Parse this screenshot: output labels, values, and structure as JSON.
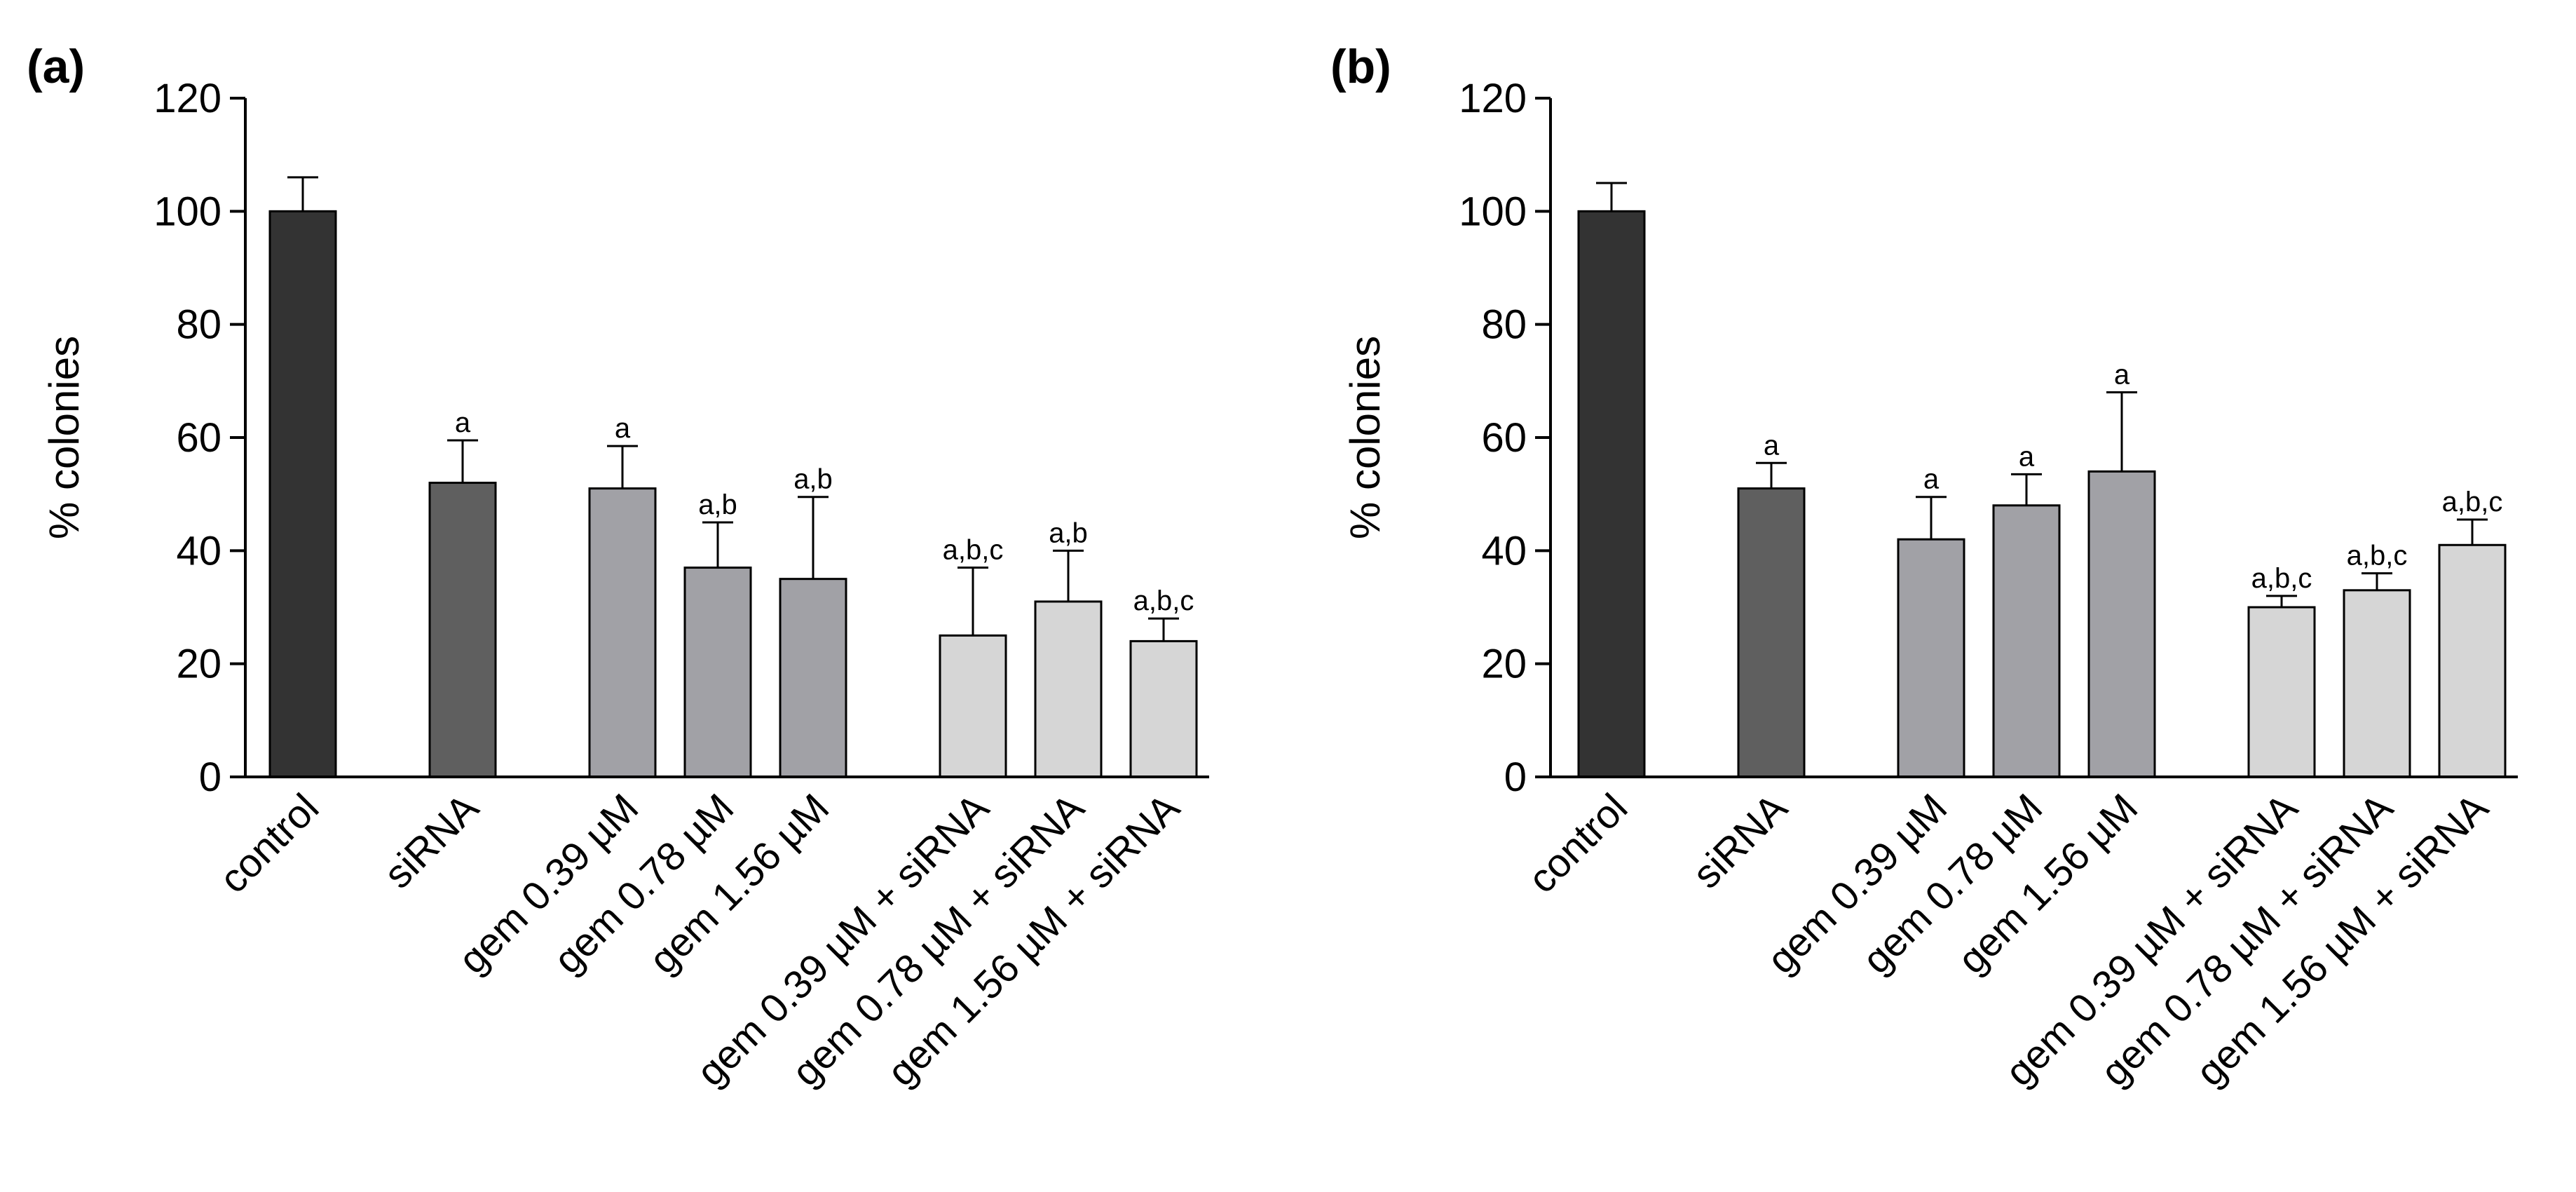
{
  "chart_data": [
    {
      "type": "bar",
      "panel_label": "(a)",
      "ylabel": "% colonies",
      "ylim": [
        0,
        120
      ],
      "yticks": [
        "0",
        "20",
        "40",
        "60",
        "80",
        "100",
        "120"
      ],
      "categories": [
        "control",
        "siRNA",
        "gem 0.39 µM",
        "gem 0.78 µM",
        "gem 1.56 µM",
        "gem 0.39 µM + siRNA",
        "gem 0.78 µM + siRNA",
        "gem 1.56 µM + siRNA"
      ],
      "groups": [
        0,
        1,
        2,
        2,
        2,
        3,
        3,
        3
      ],
      "values": [
        100,
        52,
        51,
        37,
        35,
        25,
        31,
        24
      ],
      "errors": [
        6,
        7.5,
        7.5,
        8,
        14.5,
        12,
        9,
        4
      ],
      "significance": [
        "",
        "a",
        "a",
        "a,b",
        "a,b",
        "a,b,c",
        "a,b",
        "a,b,c"
      ],
      "colors": [
        "#333333",
        "#5f5f5f",
        "#a1a1a6",
        "#a1a1a6",
        "#a1a1a6",
        "#d6d6d6",
        "#d6d6d6",
        "#d6d6d6"
      ]
    },
    {
      "type": "bar",
      "panel_label": "(b)",
      "ylabel": "% colonies",
      "ylim": [
        0,
        120
      ],
      "yticks": [
        "0",
        "20",
        "40",
        "60",
        "80",
        "100",
        "120"
      ],
      "categories": [
        "control",
        "siRNA",
        "gem 0.39 µM",
        "gem 0.78 µM",
        "gem 1.56 µM",
        "gem 0.39 µM + siRNA",
        "gem 0.78 µM + siRNA",
        "gem 1.56 µM + siRNA"
      ],
      "groups": [
        0,
        1,
        2,
        2,
        2,
        3,
        3,
        3
      ],
      "values": [
        100,
        51,
        42,
        48,
        54,
        30,
        33,
        41
      ],
      "errors": [
        5,
        4.5,
        7.5,
        5.5,
        14,
        2,
        3,
        4.5
      ],
      "significance": [
        "",
        "a",
        "a",
        "a",
        "a",
        "a,b,c",
        "a,b,c",
        "a,b,c"
      ],
      "colors": [
        "#333333",
        "#5f5f5f",
        "#a1a1a6",
        "#a1a1a6",
        "#a1a1a6",
        "#d6d6d6",
        "#d6d6d6",
        "#d6d6d6"
      ]
    }
  ]
}
